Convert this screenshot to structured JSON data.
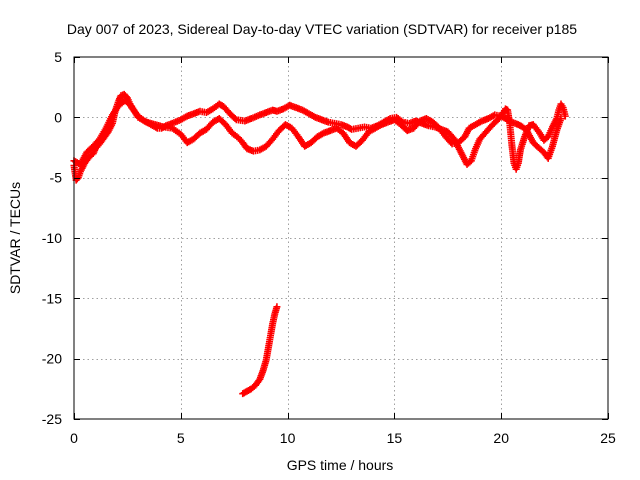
{
  "chart_data": {
    "type": "scatter",
    "title": "Day 007 of 2023, Sidereal Day-to-day VTEC variation (SDTVAR) for receiver p185",
    "xlabel": "GPS time / hours",
    "ylabel": "SDTVAR / TECUs",
    "xlim": [
      0,
      25
    ],
    "ylim": [
      -25,
      5
    ],
    "xticks": [
      "0",
      "5",
      "10",
      "15",
      "20",
      "25"
    ],
    "yticks": [
      "5",
      "0",
      "-5",
      "-10",
      "-15",
      "-20",
      "-25"
    ],
    "xtick_values": [
      0,
      5,
      10,
      15,
      20,
      25
    ],
    "ytick_values": [
      5,
      0,
      -5,
      -10,
      -15,
      -20,
      -25
    ],
    "grid": true,
    "marker": "+",
    "series": [
      {
        "name": "trace-main",
        "color": "#ff0000",
        "points": [
          [
            0.0,
            -4.0
          ],
          [
            0.1,
            -5.2
          ],
          [
            0.2,
            -5.0
          ],
          [
            0.3,
            -4.5
          ],
          [
            0.5,
            -3.8
          ],
          [
            0.7,
            -3.3
          ],
          [
            0.9,
            -3.0
          ],
          [
            1.0,
            -2.6
          ],
          [
            1.2,
            -2.2
          ],
          [
            1.4,
            -1.7
          ],
          [
            1.6,
            -1.2
          ],
          [
            1.8,
            -0.5
          ],
          [
            1.9,
            0.3
          ],
          [
            2.0,
            0.9
          ],
          [
            2.1,
            1.4
          ],
          [
            2.2,
            1.8
          ],
          [
            2.35,
            1.9
          ],
          [
            2.5,
            1.6
          ],
          [
            2.7,
            0.8
          ],
          [
            3.0,
            0.1
          ],
          [
            3.3,
            -0.3
          ],
          [
            3.6,
            -0.6
          ],
          [
            3.9,
            -0.9
          ],
          [
            4.1,
            -0.9
          ],
          [
            4.3,
            -0.7
          ],
          [
            4.6,
            -0.5
          ],
          [
            5.0,
            -0.2
          ],
          [
            5.3,
            0.1
          ],
          [
            5.6,
            0.3
          ],
          [
            5.9,
            0.5
          ],
          [
            6.2,
            0.4
          ],
          [
            6.5,
            0.7
          ],
          [
            6.8,
            1.1
          ],
          [
            7.0,
            0.9
          ],
          [
            7.3,
            0.3
          ],
          [
            7.6,
            -0.2
          ],
          [
            8.0,
            -0.3
          ],
          [
            8.3,
            -0.1
          ],
          [
            8.7,
            0.2
          ],
          [
            9.0,
            0.4
          ],
          [
            9.3,
            0.6
          ],
          [
            9.5,
            0.5
          ],
          [
            9.8,
            0.7
          ],
          [
            10.1,
            1.0
          ],
          [
            10.4,
            0.8
          ],
          [
            10.7,
            0.6
          ],
          [
            11.0,
            0.3
          ],
          [
            11.3,
            0.0
          ],
          [
            11.6,
            -0.2
          ],
          [
            11.9,
            -0.4
          ],
          [
            12.2,
            -0.5
          ],
          [
            12.5,
            -0.6
          ],
          [
            12.8,
            -0.8
          ],
          [
            13.0,
            -1.0
          ],
          [
            13.3,
            -0.9
          ],
          [
            13.6,
            -0.8
          ],
          [
            13.9,
            -0.9
          ],
          [
            14.2,
            -0.7
          ],
          [
            14.5,
            -0.4
          ],
          [
            14.8,
            -0.1
          ],
          [
            15.1,
            0.0
          ],
          [
            15.4,
            -0.4
          ],
          [
            15.7,
            -0.5
          ],
          [
            16.0,
            -0.3
          ],
          [
            16.3,
            -0.5
          ],
          [
            16.6,
            -0.7
          ],
          [
            16.9,
            -0.8
          ],
          [
            17.2,
            -1.0
          ],
          [
            17.5,
            -1.2
          ],
          [
            17.8,
            -1.8
          ],
          [
            18.0,
            -2.5
          ],
          [
            18.2,
            -3.2
          ],
          [
            18.4,
            -3.9
          ],
          [
            18.6,
            -3.6
          ],
          [
            18.8,
            -2.6
          ],
          [
            19.0,
            -1.8
          ],
          [
            19.3,
            -1.2
          ],
          [
            19.6,
            -0.6
          ],
          [
            19.9,
            -0.1
          ],
          [
            20.1,
            0.4
          ],
          [
            20.2,
            0.7
          ],
          [
            20.3,
            0.6
          ],
          [
            20.4,
            -0.5
          ],
          [
            20.5,
            -2.3
          ],
          [
            20.6,
            -3.8
          ],
          [
            20.7,
            -4.3
          ],
          [
            20.8,
            -3.8
          ],
          [
            20.9,
            -2.7
          ],
          [
            21.1,
            -1.6
          ],
          [
            21.3,
            -0.7
          ],
          [
            21.5,
            -0.6
          ],
          [
            21.8,
            -1.3
          ],
          [
            22.0,
            -1.9
          ],
          [
            22.2,
            -1.6
          ],
          [
            22.4,
            -0.8
          ],
          [
            22.6,
            -0.1
          ],
          [
            22.7,
            0.6
          ],
          [
            22.8,
            1.1
          ],
          [
            22.9,
            0.8
          ],
          [
            23.0,
            0.1
          ]
        ]
      },
      {
        "name": "trace-secondary",
        "color": "#ff0000",
        "points": [
          [
            0.0,
            -3.6
          ],
          [
            0.3,
            -3.9
          ],
          [
            0.6,
            -2.9
          ],
          [
            0.9,
            -2.4
          ],
          [
            1.2,
            -1.8
          ],
          [
            1.5,
            -0.9
          ],
          [
            1.8,
            0.2
          ],
          [
            2.1,
            1.0
          ],
          [
            2.4,
            1.4
          ],
          [
            2.7,
            0.9
          ],
          [
            3.0,
            0.0
          ],
          [
            3.4,
            -0.4
          ],
          [
            3.8,
            -0.6
          ],
          [
            4.2,
            -0.8
          ],
          [
            4.6,
            -0.9
          ],
          [
            5.0,
            -1.4
          ],
          [
            5.3,
            -2.1
          ],
          [
            5.6,
            -1.8
          ],
          [
            5.9,
            -1.3
          ],
          [
            6.2,
            -1.0
          ],
          [
            6.5,
            -0.4
          ],
          [
            6.8,
            -0.1
          ],
          [
            7.1,
            -0.6
          ],
          [
            7.4,
            -1.3
          ],
          [
            7.7,
            -1.7
          ],
          [
            7.9,
            -2.1
          ],
          [
            8.1,
            -2.6
          ],
          [
            8.4,
            -2.8
          ],
          [
            8.7,
            -2.7
          ],
          [
            9.0,
            -2.4
          ],
          [
            9.3,
            -1.8
          ],
          [
            9.6,
            -1.1
          ],
          [
            9.9,
            -0.6
          ],
          [
            10.2,
            -0.9
          ],
          [
            10.5,
            -1.6
          ],
          [
            10.8,
            -2.4
          ],
          [
            11.1,
            -2.1
          ],
          [
            11.4,
            -1.6
          ],
          [
            11.7,
            -1.3
          ],
          [
            12.0,
            -1.1
          ],
          [
            12.3,
            -0.9
          ],
          [
            12.6,
            -1.3
          ],
          [
            12.9,
            -2.1
          ],
          [
            13.2,
            -2.4
          ],
          [
            13.5,
            -1.9
          ],
          [
            13.8,
            -1.2
          ],
          [
            14.1,
            -0.9
          ],
          [
            14.4,
            -0.6
          ],
          [
            14.7,
            -0.4
          ],
          [
            15.0,
            -0.2
          ],
          [
            15.3,
            -0.6
          ],
          [
            15.6,
            -1.1
          ],
          [
            15.9,
            -0.9
          ],
          [
            16.2,
            -0.3
          ],
          [
            16.5,
            -0.1
          ],
          [
            16.8,
            -0.4
          ],
          [
            17.1,
            -0.9
          ],
          [
            17.4,
            -1.6
          ],
          [
            17.7,
            -2.2
          ],
          [
            18.0,
            -2.1
          ],
          [
            18.3,
            -1.6
          ],
          [
            18.5,
            -0.9
          ],
          [
            18.8,
            -0.6
          ],
          [
            19.1,
            -0.3
          ],
          [
            19.4,
            -0.1
          ],
          [
            19.7,
            0.2
          ],
          [
            20.0,
            0.1
          ],
          [
            20.2,
            -0.1
          ],
          [
            20.5,
            -0.4
          ],
          [
            20.8,
            -0.6
          ],
          [
            21.0,
            -0.8
          ],
          [
            21.2,
            -1.1
          ],
          [
            21.5,
            -2.1
          ],
          [
            21.8,
            -2.6
          ],
          [
            22.0,
            -2.9
          ],
          [
            22.2,
            -3.4
          ],
          [
            22.4,
            -2.4
          ],
          [
            22.6,
            -1.1
          ],
          [
            22.8,
            -0.1
          ]
        ]
      },
      {
        "name": "trace-low-arc",
        "color": "#ff0000",
        "points": [
          [
            7.9,
            -22.9
          ],
          [
            8.1,
            -22.7
          ],
          [
            8.3,
            -22.5
          ],
          [
            8.5,
            -22.2
          ],
          [
            8.7,
            -21.7
          ],
          [
            8.85,
            -21.0
          ],
          [
            9.0,
            -20.1
          ],
          [
            9.1,
            -19.1
          ],
          [
            9.2,
            -18.1
          ],
          [
            9.3,
            -17.1
          ],
          [
            9.4,
            -16.3
          ],
          [
            9.5,
            -15.7
          ]
        ]
      }
    ]
  }
}
